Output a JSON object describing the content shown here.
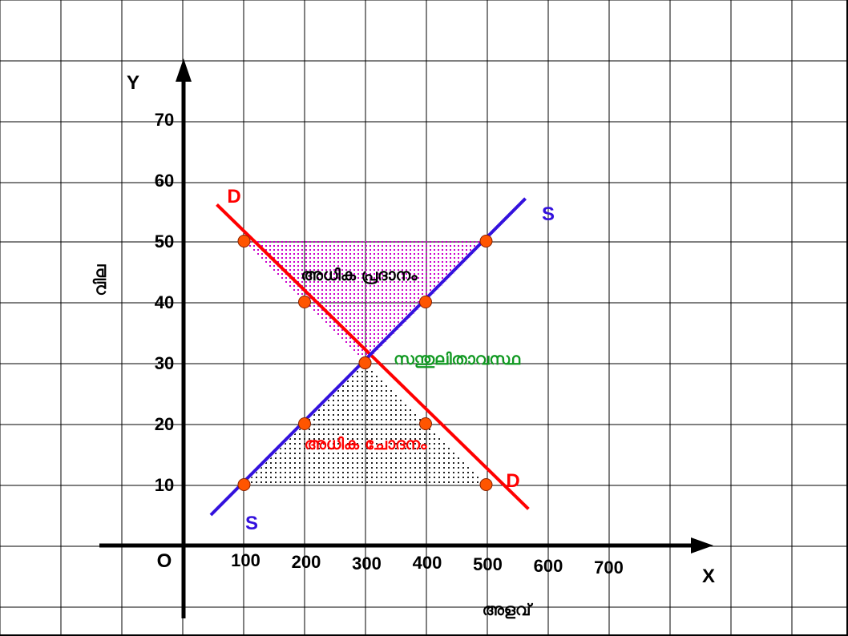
{
  "chart_data": {
    "type": "line",
    "title": "",
    "origin_label": "O",
    "x_axis_letter": "X",
    "y_axis_letter": "Y",
    "xlabel": "അളവ്",
    "ylabel": "വില",
    "x_ticks": [
      "100",
      "200",
      "300",
      "400",
      "500",
      "600",
      "700"
    ],
    "y_ticks": [
      "10",
      "20",
      "30",
      "40",
      "50",
      "60",
      "70"
    ],
    "xlim": [
      0,
      700
    ],
    "ylim": [
      0,
      70
    ],
    "grid": true,
    "series": [
      {
        "name": "D",
        "color": "#ff0000",
        "points": [
          [
            100,
            50
          ],
          [
            200,
            40
          ],
          [
            300,
            30
          ],
          [
            400,
            20
          ],
          [
            500,
            10
          ]
        ],
        "line": [
          [
            55,
            56
          ],
          [
            570,
            6
          ]
        ]
      },
      {
        "name": "S",
        "color": "#3311dd",
        "points": [
          [
            100,
            10
          ],
          [
            200,
            20
          ],
          [
            300,
            30
          ],
          [
            400,
            40
          ],
          [
            500,
            50
          ]
        ],
        "line": [
          [
            45,
            5
          ],
          [
            565,
            57
          ]
        ]
      }
    ],
    "point_color": "#ff5500",
    "annotations": {
      "excess_supply": {
        "text": "അധിക പ്രദാനം",
        "color": "#000000",
        "fill": "#cc00cc"
      },
      "excess_demand": {
        "text": "അധിക ചോദനം",
        "color": "#ff0000",
        "fill": "#000000"
      },
      "equilibrium": {
        "text": "സന്തുലിതാവസ്ഥ",
        "color": "#119922"
      }
    }
  }
}
